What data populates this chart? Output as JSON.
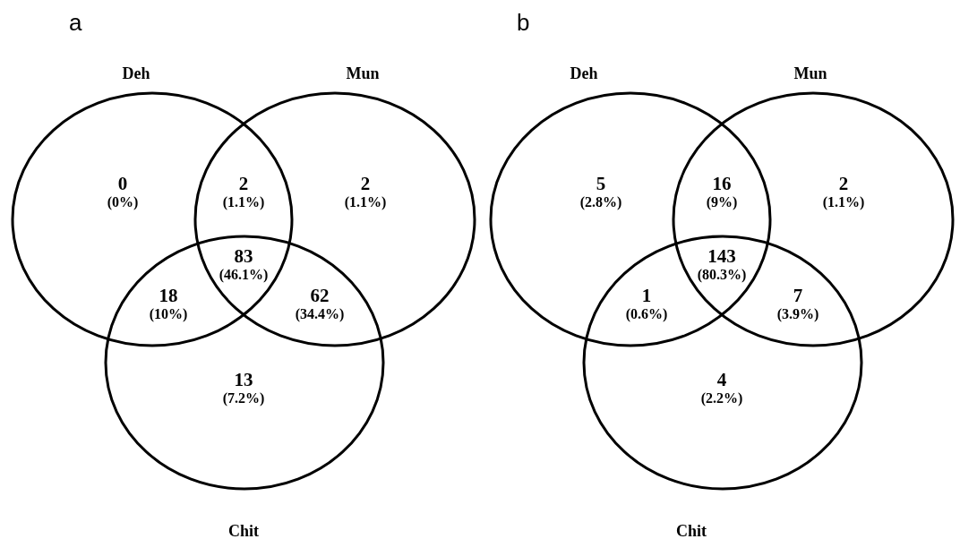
{
  "chart_data": [
    {
      "type": "other",
      "title": "a",
      "categories": [
        null,
        null,
        null,
        null,
        null,
        null,
        null
      ],
      "values": [
        0,
        2,
        2,
        83,
        18,
        62,
        13
      ],
      "data_labels": true,
      "annotations": [
        "Deh",
        "Mun",
        "Chit",
        "(0%)",
        "(1.1%)",
        "(1.1%)",
        "(46.1%)",
        "(10%)",
        "(34.4%)",
        "(7.2%)"
      ]
    },
    {
      "type": "other",
      "title": "b",
      "categories": [
        null,
        null,
        null,
        null,
        null,
        null,
        null
      ],
      "values": [
        5,
        16,
        2,
        143,
        1,
        7,
        4
      ],
      "data_labels": true,
      "annotations": [
        "Deh",
        "Mun",
        "Chit",
        "(2.8%)",
        "(9%)",
        "(1.1%)",
        "(80.3%)",
        "(0.6%)",
        "(3.9%)",
        "(2.2%)"
      ]
    }
  ]
}
